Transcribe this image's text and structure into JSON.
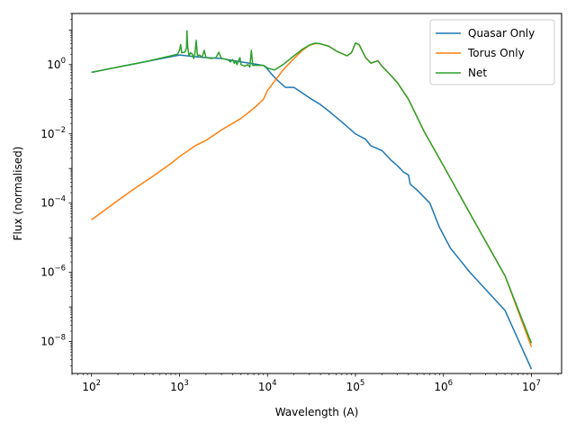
{
  "chart_data": {
    "type": "line",
    "xlabel": "Wavelength (A)",
    "ylabel": "Flux (normalised)",
    "xscale": "log",
    "yscale": "log",
    "xlim": [
      60,
      22000000
    ],
    "ylim": [
      1.2e-09,
      30
    ],
    "grid": false,
    "legend_position": "top-right",
    "x_tick_labels": [
      {
        "value": 100,
        "base": "10",
        "exp": "2"
      },
      {
        "value": 1000,
        "base": "10",
        "exp": "3"
      },
      {
        "value": 10000,
        "base": "10",
        "exp": "4"
      },
      {
        "value": 100000,
        "base": "10",
        "exp": "5"
      },
      {
        "value": 1000000,
        "base": "10",
        "exp": "6"
      },
      {
        "value": 10000000,
        "base": "10",
        "exp": "7"
      }
    ],
    "y_tick_labels": [
      {
        "value": 1e-08,
        "base": "10",
        "exp": "−8"
      },
      {
        "value": 1e-06,
        "base": "10",
        "exp": "−6"
      },
      {
        "value": 0.0001,
        "base": "10",
        "exp": "−4"
      },
      {
        "value": 0.01,
        "base": "10",
        "exp": "−2"
      },
      {
        "value": 1,
        "base": "10",
        "exp": "0"
      }
    ],
    "series": [
      {
        "name": "Quasar Only",
        "color": "#1f77b4",
        "points": [
          [
            100,
            0.6
          ],
          [
            200,
            0.85
          ],
          [
            400,
            1.2
          ],
          [
            800,
            1.7
          ],
          [
            1000,
            1.9
          ],
          [
            1500,
            1.7
          ],
          [
            2000,
            1.6
          ],
          [
            3000,
            1.5
          ],
          [
            5000,
            1.2
          ],
          [
            7000,
            1.05
          ],
          [
            9000,
            0.95
          ],
          [
            10000,
            0.75
          ],
          [
            11000,
            0.55
          ],
          [
            13000,
            0.35
          ],
          [
            16000,
            0.22
          ],
          [
            20000,
            0.22
          ],
          [
            25000,
            0.15
          ],
          [
            30000,
            0.11
          ],
          [
            40000,
            0.07
          ],
          [
            50000,
            0.045
          ],
          [
            70000,
            0.022
          ],
          [
            100000,
            0.01
          ],
          [
            130000,
            0.007
          ],
          [
            150000,
            0.0045
          ],
          [
            200000,
            0.0033
          ],
          [
            250000,
            0.0018
          ],
          [
            300000,
            0.0012
          ],
          [
            350000,
            0.0008
          ],
          [
            400000,
            0.00065
          ],
          [
            420000,
            0.00035
          ],
          [
            500000,
            0.00024
          ],
          [
            700000,
            0.0001
          ],
          [
            900000,
            2e-05
          ],
          [
            1200000,
            5e-06
          ],
          [
            2000000,
            1e-06
          ],
          [
            5000000,
            8e-08
          ],
          [
            10000000,
            1.6e-09
          ]
        ]
      },
      {
        "name": "Torus Only",
        "color": "#ff7f0e",
        "points": [
          [
            100,
            3.3e-05
          ],
          [
            150,
            7e-05
          ],
          [
            200,
            0.00012
          ],
          [
            300,
            0.00025
          ],
          [
            500,
            0.0006
          ],
          [
            700,
            0.0011
          ],
          [
            800,
            0.0014
          ],
          [
            1000,
            0.0022
          ],
          [
            1500,
            0.0045
          ],
          [
            2000,
            0.0065
          ],
          [
            3000,
            0.013
          ],
          [
            5000,
            0.028
          ],
          [
            7000,
            0.055
          ],
          [
            9000,
            0.1
          ],
          [
            10000,
            0.18
          ],
          [
            12000,
            0.33
          ],
          [
            15000,
            0.7
          ],
          [
            20000,
            1.5
          ],
          [
            25000,
            2.6
          ],
          [
            30000,
            3.6
          ],
          [
            35000,
            4.1
          ],
          [
            40000,
            4.0
          ],
          [
            50000,
            3.4
          ],
          [
            60000,
            2.5
          ],
          [
            80000,
            1.8
          ],
          [
            90000,
            2.2
          ],
          [
            100000,
            4.2
          ],
          [
            110000,
            3.8
          ],
          [
            130000,
            1.6
          ],
          [
            150000,
            1.1
          ],
          [
            180000,
            1.3
          ],
          [
            200000,
            0.9
          ],
          [
            250000,
            0.5
          ],
          [
            300000,
            0.3
          ],
          [
            400000,
            0.1
          ],
          [
            600000,
            0.012
          ],
          [
            1000000,
            0.0012
          ],
          [
            2000000,
            5e-05
          ],
          [
            5000000,
            8e-07
          ],
          [
            10000000,
            7e-09
          ]
        ]
      },
      {
        "name": "Net",
        "color": "#2ca02c",
        "points": [
          [
            100,
            0.6
          ],
          [
            200,
            0.85
          ],
          [
            400,
            1.2
          ],
          [
            800,
            1.8
          ],
          [
            950,
            2.0
          ],
          [
            1000,
            2.6
          ],
          [
            1030,
            3.8
          ],
          [
            1060,
            2.2
          ],
          [
            1150,
            2.3
          ],
          [
            1200,
            3.0
          ],
          [
            1216,
            9.5
          ],
          [
            1240,
            3.2
          ],
          [
            1280,
            1.8
          ],
          [
            1330,
            2.2
          ],
          [
            1400,
            2.0
          ],
          [
            1450,
            1.5
          ],
          [
            1500,
            2.2
          ],
          [
            1549,
            5.0
          ],
          [
            1600,
            1.8
          ],
          [
            1700,
            1.9
          ],
          [
            1800,
            1.6
          ],
          [
            1909,
            2.6
          ],
          [
            2000,
            1.6
          ],
          [
            2300,
            1.5
          ],
          [
            2600,
            1.6
          ],
          [
            2798,
            2.3
          ],
          [
            3000,
            1.5
          ],
          [
            3500,
            1.4
          ],
          [
            3800,
            1.2
          ],
          [
            4000,
            1.4
          ],
          [
            4200,
            1.1
          ],
          [
            4340,
            1.3
          ],
          [
            4500,
            1.0
          ],
          [
            4861,
            1.6
          ],
          [
            5000,
            1.0
          ],
          [
            5500,
            0.9
          ],
          [
            6000,
            1.0
          ],
          [
            6300,
            0.85
          ],
          [
            6563,
            2.6
          ],
          [
            6800,
            0.95
          ],
          [
            7500,
            0.95
          ],
          [
            9000,
            0.95
          ],
          [
            10000,
            0.8
          ],
          [
            12000,
            0.7
          ],
          [
            15000,
            1.0
          ],
          [
            20000,
            1.8
          ],
          [
            25000,
            2.8
          ],
          [
            30000,
            3.7
          ],
          [
            35000,
            4.2
          ],
          [
            40000,
            4.0
          ],
          [
            50000,
            3.4
          ],
          [
            60000,
            2.5
          ],
          [
            80000,
            1.8
          ],
          [
            90000,
            2.2
          ],
          [
            100000,
            4.2
          ],
          [
            110000,
            3.8
          ],
          [
            130000,
            1.6
          ],
          [
            150000,
            1.1
          ],
          [
            180000,
            1.3
          ],
          [
            200000,
            0.9
          ],
          [
            250000,
            0.5
          ],
          [
            300000,
            0.3
          ],
          [
            400000,
            0.1
          ],
          [
            600000,
            0.012
          ],
          [
            1000000,
            0.0012
          ],
          [
            2000000,
            5e-05
          ],
          [
            5000000,
            8e-07
          ],
          [
            10000000,
            9e-09
          ]
        ]
      }
    ]
  }
}
